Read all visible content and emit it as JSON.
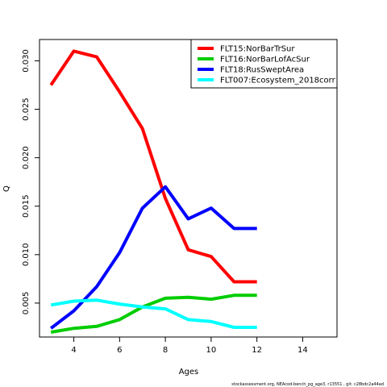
{
  "chart_data": {
    "type": "line",
    "xlabel": "Ages",
    "ylabel": "Q",
    "xlim": [
      2.5,
      15.5
    ],
    "ylim": [
      0.0015,
      0.0322
    ],
    "xticks": [
      "4",
      "6",
      "8",
      "10",
      "12",
      "14"
    ],
    "yticks": [
      "0.005",
      "0.010",
      "0.015",
      "0.020",
      "0.025",
      "0.030"
    ],
    "legend_position": "top-right",
    "series": [
      {
        "name": "FLT15:NorBarTrSur",
        "color": "#ff0000",
        "x": [
          3,
          4,
          5,
          6,
          7,
          8,
          9,
          10,
          11,
          12
        ],
        "y": [
          0.0275,
          0.031,
          0.0304,
          0.0268,
          0.023,
          0.0158,
          0.0105,
          0.0098,
          0.0072,
          0.0072
        ]
      },
      {
        "name": "FLT16:NorBarLofAcSur",
        "color": "#00cd00",
        "x": [
          3,
          4,
          5,
          6,
          7,
          8,
          9,
          10,
          11,
          12
        ],
        "y": [
          0.002,
          0.0024,
          0.0026,
          0.0033,
          0.0046,
          0.0055,
          0.0056,
          0.0054,
          0.0058,
          0.0058
        ]
      },
      {
        "name": "FLT18:RusSweptArea",
        "color": "#0000ff",
        "x": [
          3,
          4,
          5,
          6,
          7,
          8,
          9,
          10,
          11,
          12
        ],
        "y": [
          0.0024,
          0.0042,
          0.0067,
          0.0102,
          0.0148,
          0.017,
          0.0137,
          0.0148,
          0.0127,
          0.0127
        ]
      },
      {
        "name": "FLT007:Ecosystem_2018corr",
        "color": "#00ffff",
        "x": [
          3,
          4,
          5,
          6,
          7,
          8,
          9,
          10,
          11,
          12
        ],
        "y": [
          0.0048,
          0.0052,
          0.0053,
          0.0049,
          0.0046,
          0.0044,
          0.0033,
          0.0031,
          0.0025,
          0.0025
        ]
      }
    ]
  },
  "footer": "stockassessment.org, NEAcod-bench_pg_age3, r13551 , git: c28bdc2a44ad"
}
